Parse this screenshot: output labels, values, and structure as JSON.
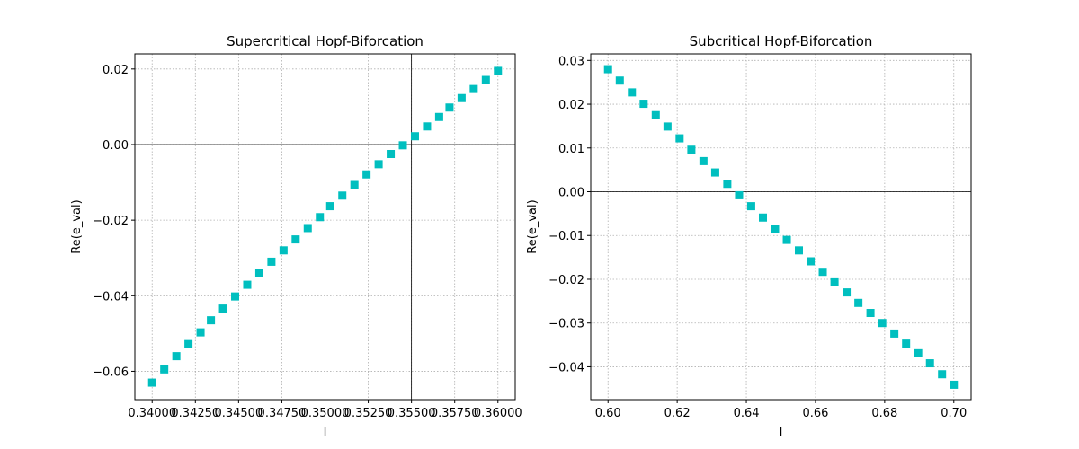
{
  "chart_data": [
    {
      "type": "scatter",
      "title": "Supercritical Hopf-Biforcation",
      "xlabel": "I",
      "ylabel": "Re(e_val)",
      "xlim": [
        0.339,
        0.361
      ],
      "ylim": [
        -0.0675,
        0.024
      ],
      "xticks": [
        0.34,
        0.3425,
        0.345,
        0.3475,
        0.35,
        0.3525,
        0.355,
        0.3575,
        0.36
      ],
      "xtick_labels": [
        "0.34000",
        "0.34250",
        "0.34500",
        "0.34750",
        "0.35000",
        "0.35250",
        "0.35500",
        "0.35750",
        "0.36000"
      ],
      "yticks": [
        -0.06,
        -0.04,
        -0.02,
        0.0,
        0.02
      ],
      "ytick_labels": [
        "−0.06",
        "−0.04",
        "−0.02",
        "0.00",
        "0.02"
      ],
      "grid": true,
      "vline": 0.355,
      "hline": 0.0,
      "marker": "square",
      "color": "#00BFBF",
      "x": [
        0.34,
        0.3407,
        0.3414,
        0.3421,
        0.3428,
        0.3434,
        0.3441,
        0.3448,
        0.3455,
        0.3462,
        0.3469,
        0.3476,
        0.3483,
        0.349,
        0.3497,
        0.3503,
        0.351,
        0.3517,
        0.3524,
        0.3531,
        0.3538,
        0.3545,
        0.3552,
        0.3559,
        0.3566,
        0.3572,
        0.3579,
        0.3586,
        0.3593,
        0.36
      ],
      "y": [
        -0.063,
        -0.0595,
        -0.056,
        -0.0528,
        -0.0497,
        -0.0465,
        -0.0434,
        -0.0402,
        -0.0371,
        -0.0341,
        -0.031,
        -0.028,
        -0.0251,
        -0.0221,
        -0.0192,
        -0.0163,
        -0.0135,
        -0.0107,
        -0.0079,
        -0.0052,
        -0.0025,
        -0.0002,
        0.0022,
        0.0048,
        0.0073,
        0.0098,
        0.0123,
        0.0147,
        0.0171,
        0.0195
      ]
    },
    {
      "type": "scatter",
      "title": "Subcritical Hopf-Biforcation",
      "xlabel": "I",
      "ylabel": "Re(e_val)",
      "xlim": [
        0.595,
        0.705
      ],
      "ylim": [
        -0.0475,
        0.0315
      ],
      "xticks": [
        0.6,
        0.62,
        0.64,
        0.66,
        0.68,
        0.7
      ],
      "xtick_labels": [
        "0.60",
        "0.62",
        "0.64",
        "0.66",
        "0.68",
        "0.70"
      ],
      "yticks": [
        -0.04,
        -0.03,
        -0.02,
        -0.01,
        0.0,
        0.01,
        0.02,
        0.03
      ],
      "ytick_labels": [
        "−0.04",
        "−0.03",
        "−0.02",
        "−0.01",
        "0.00",
        "0.01",
        "0.02",
        "0.03"
      ],
      "grid": true,
      "vline": 0.637,
      "hline": 0.0,
      "marker": "square",
      "color": "#00BFBF",
      "x": [
        0.6,
        0.6034,
        0.6069,
        0.6103,
        0.6138,
        0.6172,
        0.6207,
        0.6241,
        0.6276,
        0.631,
        0.6345,
        0.6379,
        0.6414,
        0.6448,
        0.6483,
        0.6517,
        0.6552,
        0.6586,
        0.6621,
        0.6655,
        0.669,
        0.6724,
        0.6759,
        0.6793,
        0.6828,
        0.6862,
        0.6897,
        0.6931,
        0.6966,
        0.7
      ],
      "y": [
        0.028,
        0.0254,
        0.0227,
        0.0201,
        0.0175,
        0.0149,
        0.0122,
        0.0096,
        0.007,
        0.0044,
        0.0018,
        -0.0008,
        -0.0033,
        -0.0059,
        -0.0085,
        -0.011,
        -0.0134,
        -0.0159,
        -0.0183,
        -0.0207,
        -0.023,
        -0.0254,
        -0.0277,
        -0.03,
        -0.0324,
        -0.0347,
        -0.0369,
        -0.0392,
        -0.0417,
        -0.0441
      ]
    }
  ]
}
